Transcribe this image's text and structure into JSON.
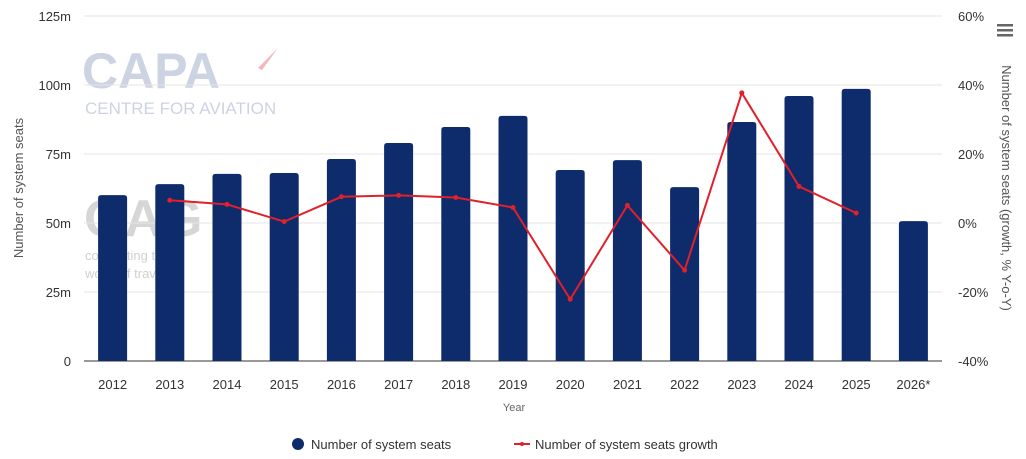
{
  "chart_data": {
    "type": "bar",
    "categories": [
      "2012",
      "2013",
      "2014",
      "2015",
      "2016",
      "2017",
      "2018",
      "2019",
      "2020",
      "2021",
      "2022",
      "2023",
      "2024",
      "2025",
      "2026*"
    ],
    "series": [
      {
        "name": "Number of system seats",
        "type": "bar",
        "axis": "left",
        "color": "#0e2b6b",
        "values": [
          60.1,
          64.1,
          67.8,
          68.1,
          73.2,
          79.0,
          84.8,
          88.8,
          69.2,
          72.8,
          63.0,
          86.6,
          96.0,
          98.6,
          50.7
        ]
      },
      {
        "name": "Number of system seats growth",
        "type": "line",
        "axis": "right",
        "color": "#e0202a",
        "values": [
          null,
          6.6,
          5.4,
          0.4,
          7.6,
          8.0,
          7.4,
          4.5,
          -22.1,
          5.1,
          -13.7,
          37.7,
          10.6,
          2.9,
          null
        ]
      }
    ],
    "title": "",
    "xlabel": "Year",
    "ylabel": "Number of system seats",
    "ylabel_right": "Number of system seats (growth, % Y-o-Y)",
    "ylim": [
      0,
      125
    ],
    "ylim_right": [
      -40,
      60
    ],
    "yticks": [
      "0",
      "25m",
      "50m",
      "75m",
      "100m",
      "125m"
    ],
    "yticks_right": [
      "-40%",
      "-20%",
      "0%",
      "20%",
      "40%",
      "60%"
    ],
    "grid": true,
    "legend": "bottom-center",
    "watermarks": {
      "capa_main": "CAPA",
      "capa_sub": "CENTRE FOR AVIATION",
      "oag_main": "OAG",
      "oag_sub1": "connecting the",
      "oag_sub2": "world of travel"
    }
  },
  "ui": {
    "menu_icon": "hamburger-menu-icon"
  }
}
